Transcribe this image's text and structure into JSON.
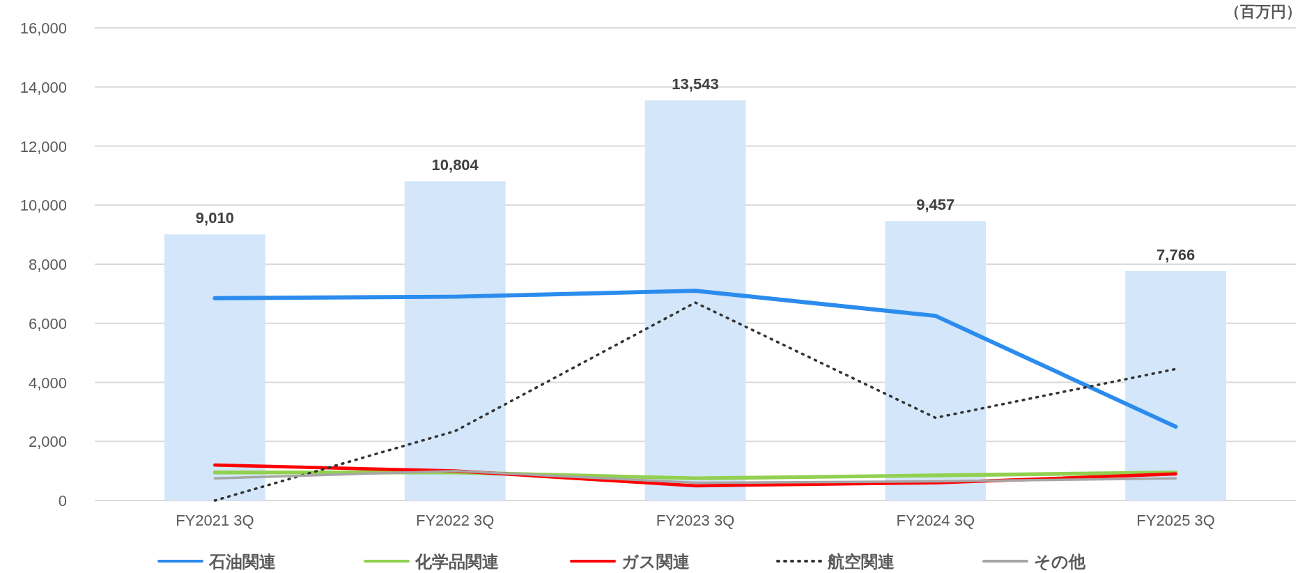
{
  "chart_data": {
    "type": "bar",
    "categories": [
      "FY2021 3Q",
      "FY2022 3Q",
      "FY2023 3Q",
      "FY2024 3Q",
      "FY2025 3Q"
    ],
    "annotations": [
      "（百万円）"
    ],
    "ylim": [
      0,
      16000
    ],
    "yticks": [
      0,
      {
        "value": 2000,
        "label": "2,000"
      },
      {
        "value": 4000,
        "label": "4,000"
      },
      {
        "value": 6000,
        "label": "6,000"
      },
      {
        "value": 8000,
        "label": "8,000"
      },
      {
        "value": 10000,
        "label": "10,000"
      },
      {
        "value": 12000,
        "label": "12,000"
      },
      {
        "value": 14000,
        "label": "14,000"
      },
      {
        "value": 16000,
        "label": "16,000"
      }
    ],
    "grid": "y",
    "legend": "bottom",
    "series": [
      {
        "color": "#d3e6fa",
        "values": [
          9010,
          10804,
          13543,
          9457,
          7766
        ],
        "value_labels": [
          "9,010",
          "10,804",
          "13,543",
          "9,457",
          "7,766"
        ]
      },
      {
        "type": "line",
        "name": "石油関連",
        "color": "#2b8ced",
        "values": [
          6850,
          6900,
          7100,
          6250,
          2500
        ],
        "line_style": "solid"
      },
      {
        "type": "line",
        "name": "化学品関連",
        "color": "#92d050",
        "values": [
          950,
          950,
          750,
          850,
          950
        ],
        "line_style": "solid"
      },
      {
        "type": "line",
        "name": "ガス関連",
        "color": "#ff0000",
        "values": [
          1200,
          1000,
          500,
          600,
          900
        ],
        "line_style": "solid"
      },
      {
        "type": "line",
        "name": "航空関連",
        "color": "#333333",
        "values": [
          0,
          2350,
          6700,
          2800,
          4450
        ],
        "line_style": "dotted"
      },
      {
        "type": "line",
        "name": "その他",
        "color": "#a6a6a6",
        "values": [
          750,
          1000,
          600,
          650,
          750
        ],
        "line_style": "solid"
      }
    ]
  }
}
